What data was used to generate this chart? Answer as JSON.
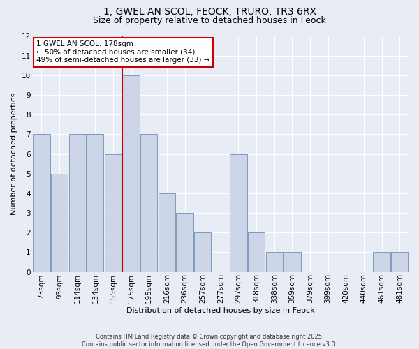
{
  "title_line1": "1, GWEL AN SCOL, FEOCK, TRURO, TR3 6RX",
  "title_line2": "Size of property relative to detached houses in Feock",
  "xlabel": "Distribution of detached houses by size in Feock",
  "ylabel": "Number of detached properties",
  "categories": [
    "73sqm",
    "93sqm",
    "114sqm",
    "134sqm",
    "155sqm",
    "175sqm",
    "195sqm",
    "216sqm",
    "236sqm",
    "257sqm",
    "277sqm",
    "297sqm",
    "318sqm",
    "338sqm",
    "359sqm",
    "379sqm",
    "399sqm",
    "420sqm",
    "440sqm",
    "461sqm",
    "481sqm"
  ],
  "values": [
    7,
    5,
    7,
    7,
    6,
    10,
    7,
    4,
    3,
    2,
    0,
    6,
    2,
    1,
    1,
    0,
    0,
    0,
    0,
    1,
    1
  ],
  "bar_color": "#ccd6e8",
  "bar_edge_color": "#8099bb",
  "vline_index": 5,
  "ylim": [
    0,
    12
  ],
  "yticks": [
    0,
    1,
    2,
    3,
    4,
    5,
    6,
    7,
    8,
    9,
    10,
    11,
    12
  ],
  "annotation_text": "1 GWEL AN SCOL: 178sqm\n← 50% of detached houses are smaller (34)\n49% of semi-detached houses are larger (33) →",
  "annotation_box_color": "#ffffff",
  "annotation_box_edge": "#cc0000",
  "vline_color": "#cc0000",
  "footer": "Contains HM Land Registry data © Crown copyright and database right 2025.\nContains public sector information licensed under the Open Government Licence v3.0.",
  "background_color": "#e8edf5",
  "plot_bg_color": "#e8edf5",
  "title_fontsize": 10,
  "subtitle_fontsize": 9,
  "ylabel_fontsize": 8,
  "xlabel_fontsize": 8,
  "tick_fontsize": 7.5,
  "footer_fontsize": 6,
  "annotation_fontsize": 7.5
}
